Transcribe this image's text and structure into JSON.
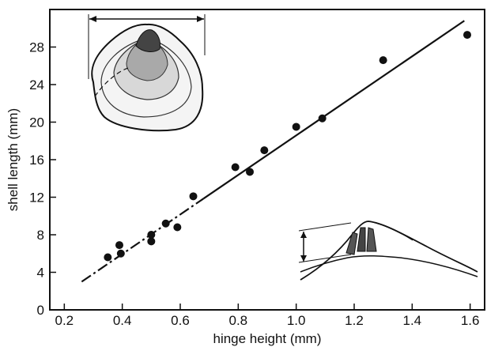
{
  "chart_data": {
    "type": "scatter",
    "title": "",
    "xlabel": "hinge height (mm)",
    "ylabel": "shell length (mm)",
    "xlim": [
      0.15,
      1.65
    ],
    "ylim": [
      0,
      32
    ],
    "x_ticks": [
      "0.2",
      "0.4",
      "0.6",
      "0.8",
      "1.0",
      "1.2",
      "1.4",
      "1.6"
    ],
    "x_tick_values": [
      0.2,
      0.4,
      0.6,
      0.8,
      1.0,
      1.2,
      1.4,
      1.6
    ],
    "y_ticks": [
      "0",
      "4",
      "8",
      "12",
      "16",
      "20",
      "24",
      "28"
    ],
    "y_tick_values": [
      0,
      4,
      8,
      12,
      16,
      20,
      24,
      28
    ],
    "grid": false,
    "legend": "none",
    "points": [
      {
        "x": 0.35,
        "y": 5.6
      },
      {
        "x": 0.39,
        "y": 6.9
      },
      {
        "x": 0.395,
        "y": 6.0
      },
      {
        "x": 0.5,
        "y": 7.3
      },
      {
        "x": 0.5,
        "y": 8.0
      },
      {
        "x": 0.55,
        "y": 9.2
      },
      {
        "x": 0.59,
        "y": 8.8
      },
      {
        "x": 0.645,
        "y": 12.1
      },
      {
        "x": 0.79,
        "y": 15.2
      },
      {
        "x": 0.84,
        "y": 14.7
      },
      {
        "x": 0.89,
        "y": 17.0
      },
      {
        "x": 1.0,
        "y": 19.5
      },
      {
        "x": 1.09,
        "y": 20.4
      },
      {
        "x": 1.3,
        "y": 26.6
      },
      {
        "x": 1.59,
        "y": 29.3
      }
    ],
    "fit_line": {
      "x": [
        0.26,
        1.58
      ],
      "y": [
        3.0,
        30.8
      ],
      "style": "dash-dot at lower end, solid above"
    },
    "insets": [
      "shell outline with arrow spanning shell length",
      "hinge profile with arrow marking hinge height"
    ]
  },
  "colors": {
    "ink": "#111111",
    "background": "#ffffff",
    "stipple": "#444444"
  }
}
